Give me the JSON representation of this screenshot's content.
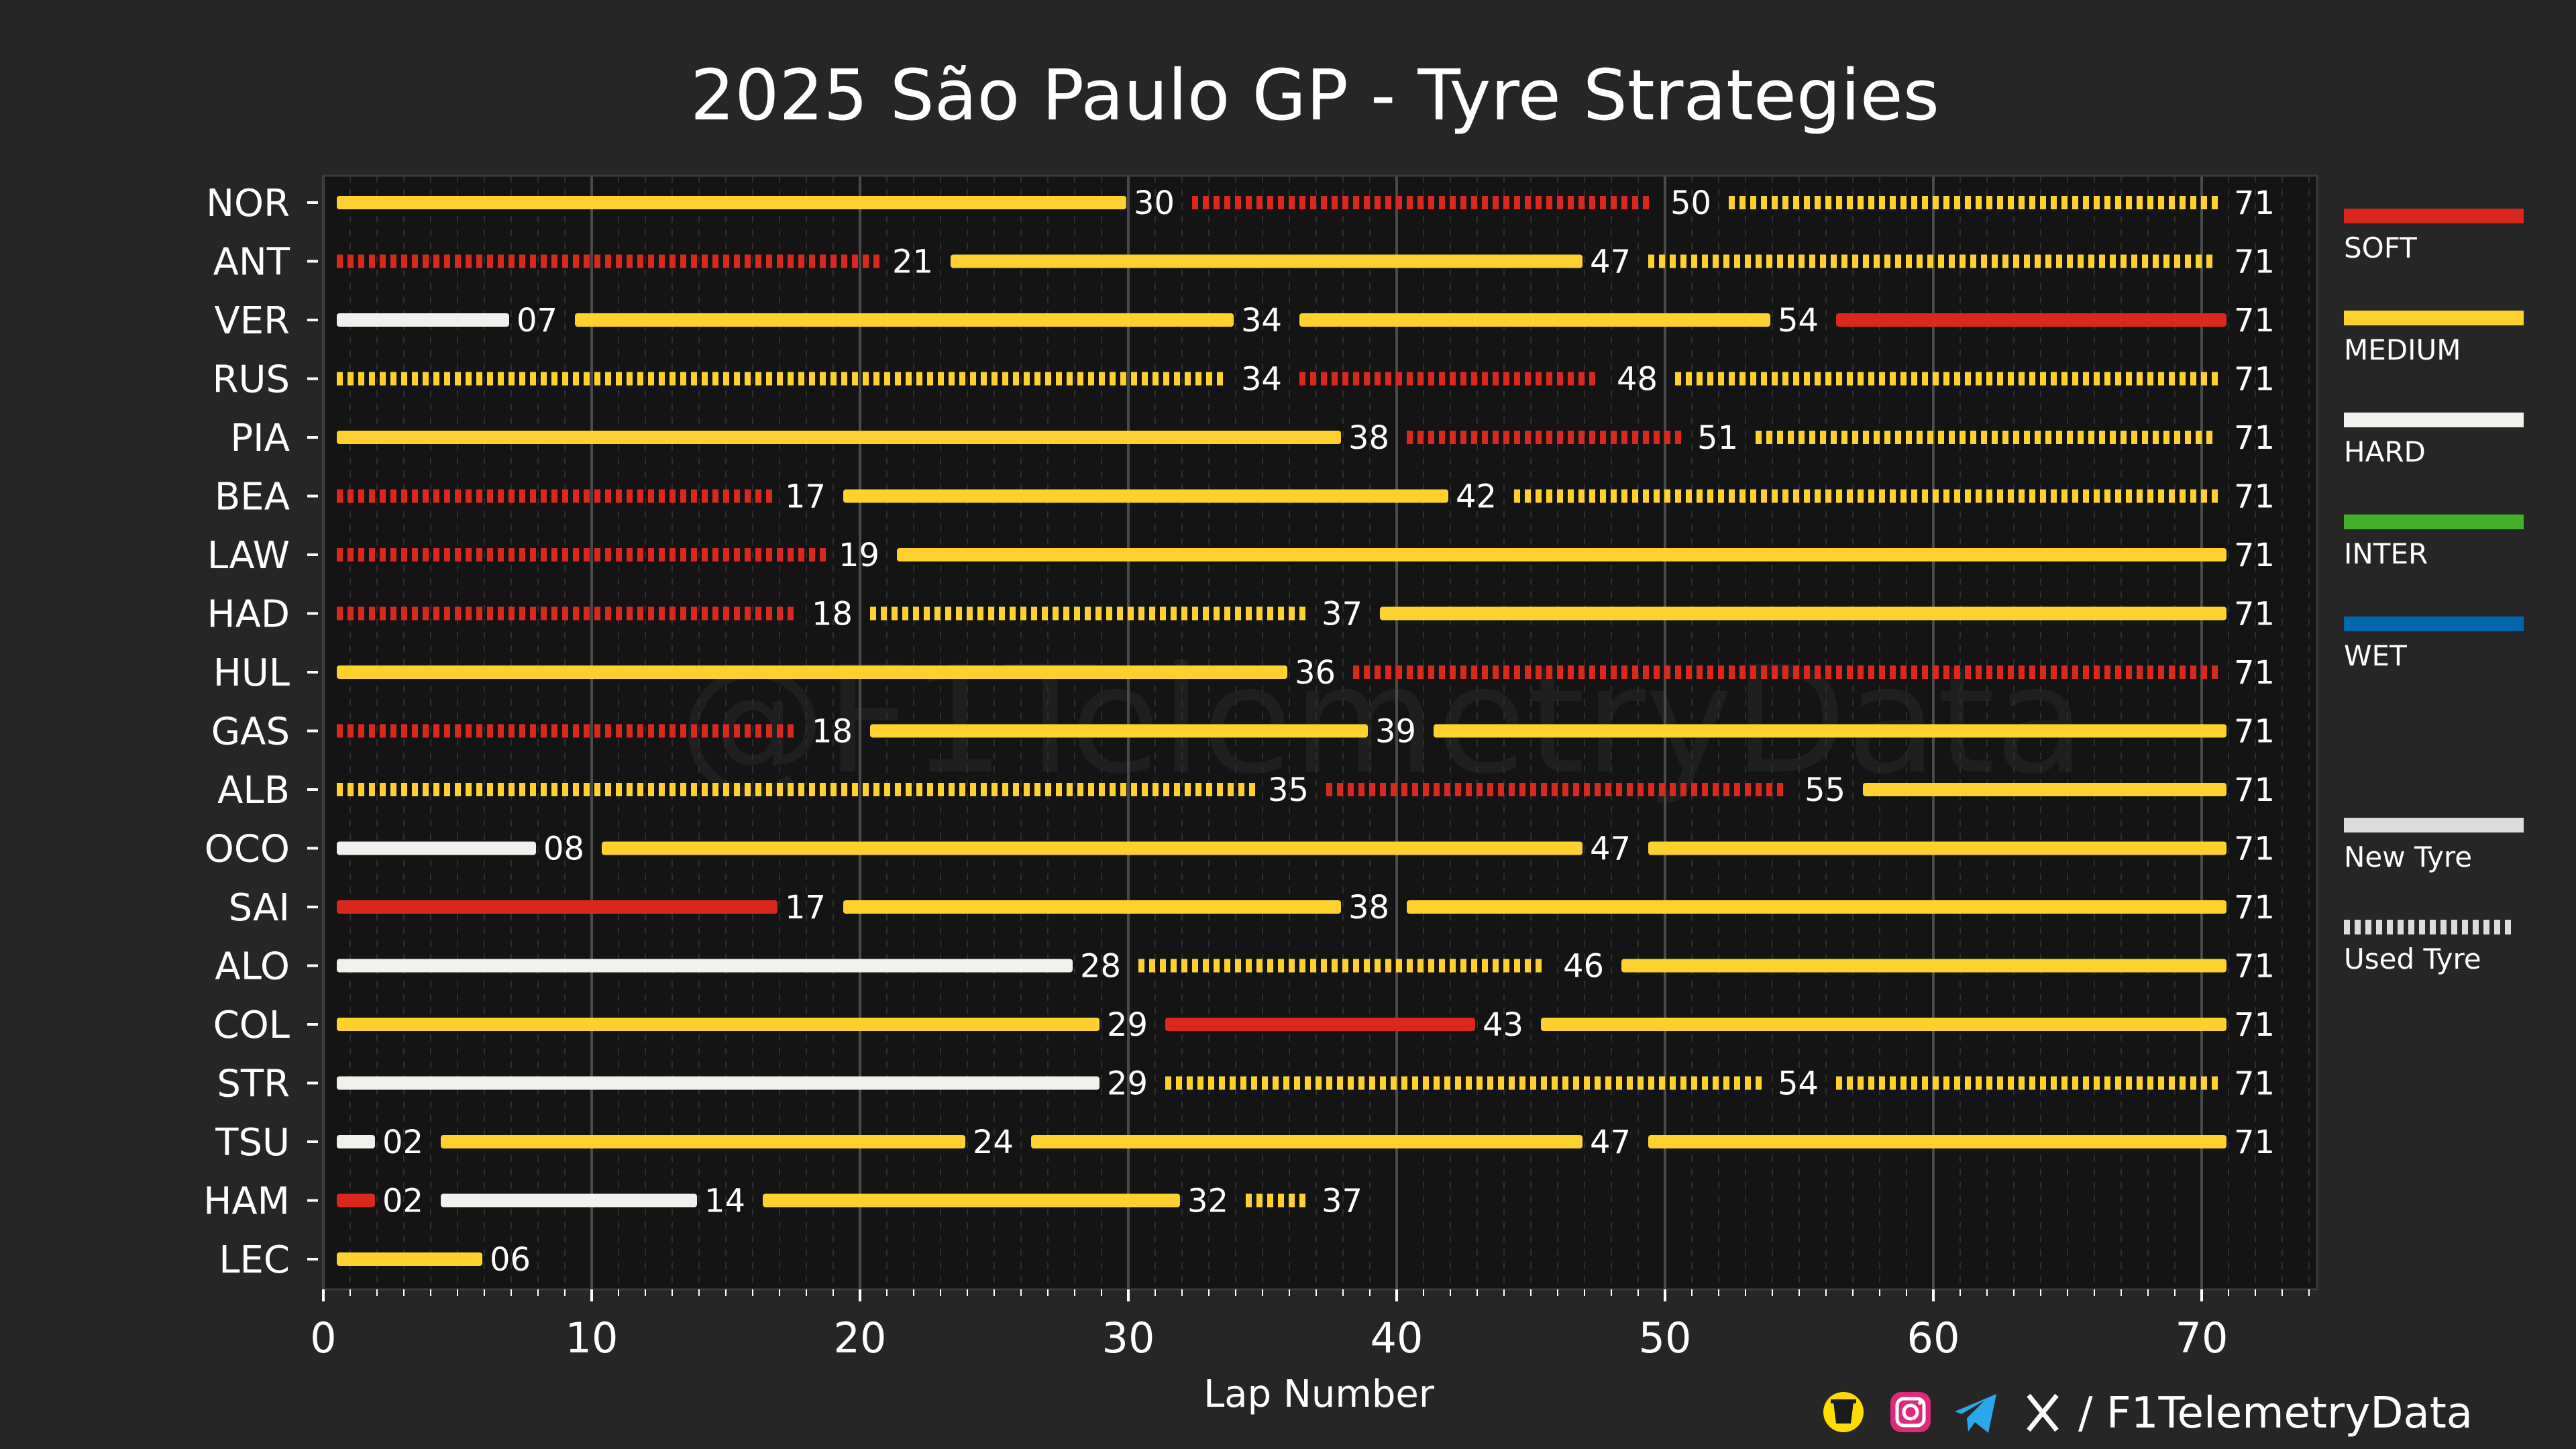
{
  "chart_data": {
    "type": "bar",
    "orientation": "horizontal",
    "title": "2025 São Paulo GP - Tyre Strategies",
    "xlabel": "Lap Number",
    "ylabel": "",
    "xlim": [
      0,
      74
    ],
    "xticks": [
      0,
      10,
      20,
      30,
      40,
      50,
      60,
      70
    ],
    "xtick_labels": [
      "0",
      "10",
      "20",
      "30",
      "40",
      "50",
      "60",
      "70"
    ],
    "grid": true,
    "compound_colors": {
      "SOFT": "#da291c",
      "MEDIUM": "#ffd12e",
      "HARD": "#f0f0ec",
      "INTER": "#43b02a",
      "WET": "#0067ad"
    },
    "legend": {
      "placement": "right",
      "compounds": [
        "SOFT",
        "MEDIUM",
        "HARD",
        "INTER",
        "WET"
      ],
      "tyre_states": [
        {
          "label": "New Tyre",
          "style": "solid"
        },
        {
          "label": "Used Tyre",
          "style": "dashed"
        }
      ]
    },
    "drivers": [
      {
        "driver": "NOR",
        "stints": [
          {
            "compound": "MEDIUM",
            "start": 0,
            "end": 30,
            "used": false,
            "label": "30"
          },
          {
            "compound": "SOFT",
            "start": 30,
            "end": 50,
            "used": true,
            "label": "50"
          },
          {
            "compound": "MEDIUM",
            "start": 50,
            "end": 71,
            "used": true,
            "label": "71"
          }
        ]
      },
      {
        "driver": "ANT",
        "stints": [
          {
            "compound": "SOFT",
            "start": 0,
            "end": 21,
            "used": true,
            "label": "21"
          },
          {
            "compound": "MEDIUM",
            "start": 21,
            "end": 47,
            "used": false,
            "label": "47"
          },
          {
            "compound": "MEDIUM",
            "start": 47,
            "end": 71,
            "used": true,
            "label": "71"
          }
        ]
      },
      {
        "driver": "VER",
        "stints": [
          {
            "compound": "HARD",
            "start": 0,
            "end": 7,
            "used": false,
            "label": "07"
          },
          {
            "compound": "MEDIUM",
            "start": 7,
            "end": 34,
            "used": false,
            "label": "34"
          },
          {
            "compound": "MEDIUM",
            "start": 34,
            "end": 54,
            "used": false,
            "label": "54"
          },
          {
            "compound": "SOFT",
            "start": 54,
            "end": 71,
            "used": false,
            "label": "71"
          }
        ]
      },
      {
        "driver": "RUS",
        "stints": [
          {
            "compound": "MEDIUM",
            "start": 0,
            "end": 34,
            "used": true,
            "label": "34"
          },
          {
            "compound": "SOFT",
            "start": 34,
            "end": 48,
            "used": true,
            "label": "48"
          },
          {
            "compound": "MEDIUM",
            "start": 48,
            "end": 71,
            "used": true,
            "label": "71"
          }
        ]
      },
      {
        "driver": "PIA",
        "stints": [
          {
            "compound": "MEDIUM",
            "start": 0,
            "end": 38,
            "used": false,
            "label": "38"
          },
          {
            "compound": "SOFT",
            "start": 38,
            "end": 51,
            "used": true,
            "label": "51"
          },
          {
            "compound": "MEDIUM",
            "start": 51,
            "end": 71,
            "used": true,
            "label": "71"
          }
        ]
      },
      {
        "driver": "BEA",
        "stints": [
          {
            "compound": "SOFT",
            "start": 0,
            "end": 17,
            "used": true,
            "label": "17"
          },
          {
            "compound": "MEDIUM",
            "start": 17,
            "end": 42,
            "used": false,
            "label": "42"
          },
          {
            "compound": "MEDIUM",
            "start": 42,
            "end": 71,
            "used": true,
            "label": "71"
          }
        ]
      },
      {
        "driver": "LAW",
        "stints": [
          {
            "compound": "SOFT",
            "start": 0,
            "end": 19,
            "used": true,
            "label": "19"
          },
          {
            "compound": "MEDIUM",
            "start": 19,
            "end": 71,
            "used": false,
            "label": "71"
          }
        ]
      },
      {
        "driver": "HAD",
        "stints": [
          {
            "compound": "SOFT",
            "start": 0,
            "end": 18,
            "used": true,
            "label": "18"
          },
          {
            "compound": "MEDIUM",
            "start": 18,
            "end": 37,
            "used": true,
            "label": "37"
          },
          {
            "compound": "MEDIUM",
            "start": 37,
            "end": 71,
            "used": false,
            "label": "71"
          }
        ]
      },
      {
        "driver": "HUL",
        "stints": [
          {
            "compound": "MEDIUM",
            "start": 0,
            "end": 36,
            "used": false,
            "label": "36"
          },
          {
            "compound": "SOFT",
            "start": 36,
            "end": 71,
            "used": true,
            "label": "71"
          }
        ]
      },
      {
        "driver": "GAS",
        "stints": [
          {
            "compound": "SOFT",
            "start": 0,
            "end": 18,
            "used": true,
            "label": "18"
          },
          {
            "compound": "MEDIUM",
            "start": 18,
            "end": 39,
            "used": false,
            "label": "39"
          },
          {
            "compound": "MEDIUM",
            "start": 39,
            "end": 71,
            "used": false,
            "label": "71"
          }
        ]
      },
      {
        "driver": "ALB",
        "stints": [
          {
            "compound": "MEDIUM",
            "start": 0,
            "end": 35,
            "used": true,
            "label": "35"
          },
          {
            "compound": "SOFT",
            "start": 35,
            "end": 55,
            "used": true,
            "label": "55"
          },
          {
            "compound": "MEDIUM",
            "start": 55,
            "end": 71,
            "used": false,
            "label": "71"
          }
        ]
      },
      {
        "driver": "OCO",
        "stints": [
          {
            "compound": "HARD",
            "start": 0,
            "end": 8,
            "used": false,
            "label": "08"
          },
          {
            "compound": "MEDIUM",
            "start": 8,
            "end": 47,
            "used": false,
            "label": "47"
          },
          {
            "compound": "MEDIUM",
            "start": 47,
            "end": 71,
            "used": false,
            "label": "71"
          }
        ]
      },
      {
        "driver": "SAI",
        "stints": [
          {
            "compound": "SOFT",
            "start": 0,
            "end": 17,
            "used": false,
            "label": "17"
          },
          {
            "compound": "MEDIUM",
            "start": 17,
            "end": 38,
            "used": false,
            "label": "38"
          },
          {
            "compound": "MEDIUM",
            "start": 38,
            "end": 71,
            "used": false,
            "label": "71"
          }
        ]
      },
      {
        "driver": "ALO",
        "stints": [
          {
            "compound": "HARD",
            "start": 0,
            "end": 28,
            "used": false,
            "label": "28"
          },
          {
            "compound": "MEDIUM",
            "start": 28,
            "end": 46,
            "used": true,
            "label": "46"
          },
          {
            "compound": "MEDIUM",
            "start": 46,
            "end": 71,
            "used": false,
            "label": "71"
          }
        ]
      },
      {
        "driver": "COL",
        "stints": [
          {
            "compound": "MEDIUM",
            "start": 0,
            "end": 29,
            "used": false,
            "label": "29"
          },
          {
            "compound": "SOFT",
            "start": 29,
            "end": 43,
            "used": false,
            "label": "43"
          },
          {
            "compound": "MEDIUM",
            "start": 43,
            "end": 71,
            "used": false,
            "label": "71"
          }
        ]
      },
      {
        "driver": "STR",
        "stints": [
          {
            "compound": "HARD",
            "start": 0,
            "end": 29,
            "used": false,
            "label": "29"
          },
          {
            "compound": "MEDIUM",
            "start": 29,
            "end": 54,
            "used": true,
            "label": "54"
          },
          {
            "compound": "MEDIUM",
            "start": 54,
            "end": 71,
            "used": true,
            "label": "71"
          }
        ]
      },
      {
        "driver": "TSU",
        "stints": [
          {
            "compound": "HARD",
            "start": 0,
            "end": 2,
            "used": false,
            "label": "02"
          },
          {
            "compound": "MEDIUM",
            "start": 2,
            "end": 24,
            "used": false,
            "label": "24"
          },
          {
            "compound": "MEDIUM",
            "start": 24,
            "end": 47,
            "used": false,
            "label": "47"
          },
          {
            "compound": "MEDIUM",
            "start": 47,
            "end": 71,
            "used": false,
            "label": "71"
          }
        ]
      },
      {
        "driver": "HAM",
        "stints": [
          {
            "compound": "SOFT",
            "start": 0,
            "end": 2,
            "used": false,
            "label": "02"
          },
          {
            "compound": "HARD",
            "start": 2,
            "end": 14,
            "used": false,
            "label": "14"
          },
          {
            "compound": "MEDIUM",
            "start": 14,
            "end": 32,
            "used": false,
            "label": "32"
          },
          {
            "compound": "MEDIUM",
            "start": 32,
            "end": 37,
            "used": true,
            "label": "37"
          }
        ]
      },
      {
        "driver": "LEC",
        "stints": [
          {
            "compound": "MEDIUM",
            "start": 0,
            "end": 6,
            "used": false,
            "label": "06"
          }
        ]
      }
    ],
    "watermark": "@F1TelemetryData"
  },
  "footer": {
    "handle": "/ F1TelemetryData",
    "icons": [
      "buymeacoffee-icon",
      "instagram-icon",
      "telegram-icon",
      "x-icon"
    ]
  }
}
